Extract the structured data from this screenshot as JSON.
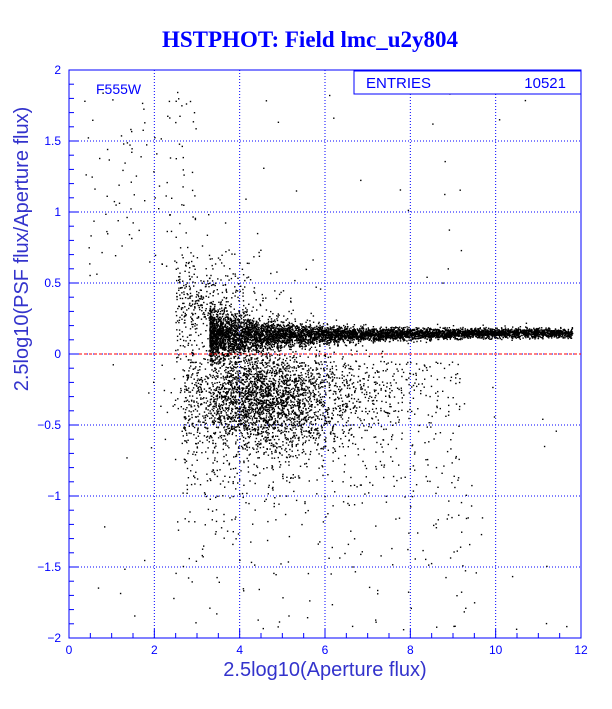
{
  "chart_data": {
    "type": "scatter",
    "title": "HSTPHOT: Field lmc_u2y804",
    "xlabel": "2.5log10(Aperture flux)",
    "ylabel": "2.5log10(PSF flux/Aperture flux)",
    "xlim": [
      0,
      12
    ],
    "ylim": [
      -2,
      2
    ],
    "x_ticks": [
      0,
      2,
      4,
      6,
      8,
      10,
      12
    ],
    "y_ticks": [
      -2,
      -1.5,
      -1,
      -0.5,
      0,
      0.5,
      1,
      1.5,
      2
    ],
    "grid": true,
    "reference_line": {
      "y": 0,
      "color": "#ff0000",
      "style": "dashed"
    },
    "annotation": "F555W",
    "stats_box": {
      "label": "ENTRIES",
      "value": "10521"
    },
    "point_color": "#000000",
    "point_count": 10521
  },
  "colors": {
    "frame": "#0000ff",
    "grid": "#0000ff",
    "title": "#0000ff",
    "axis_title": "#3333cc",
    "points": "#000000",
    "zero_line": "#ff0000"
  }
}
